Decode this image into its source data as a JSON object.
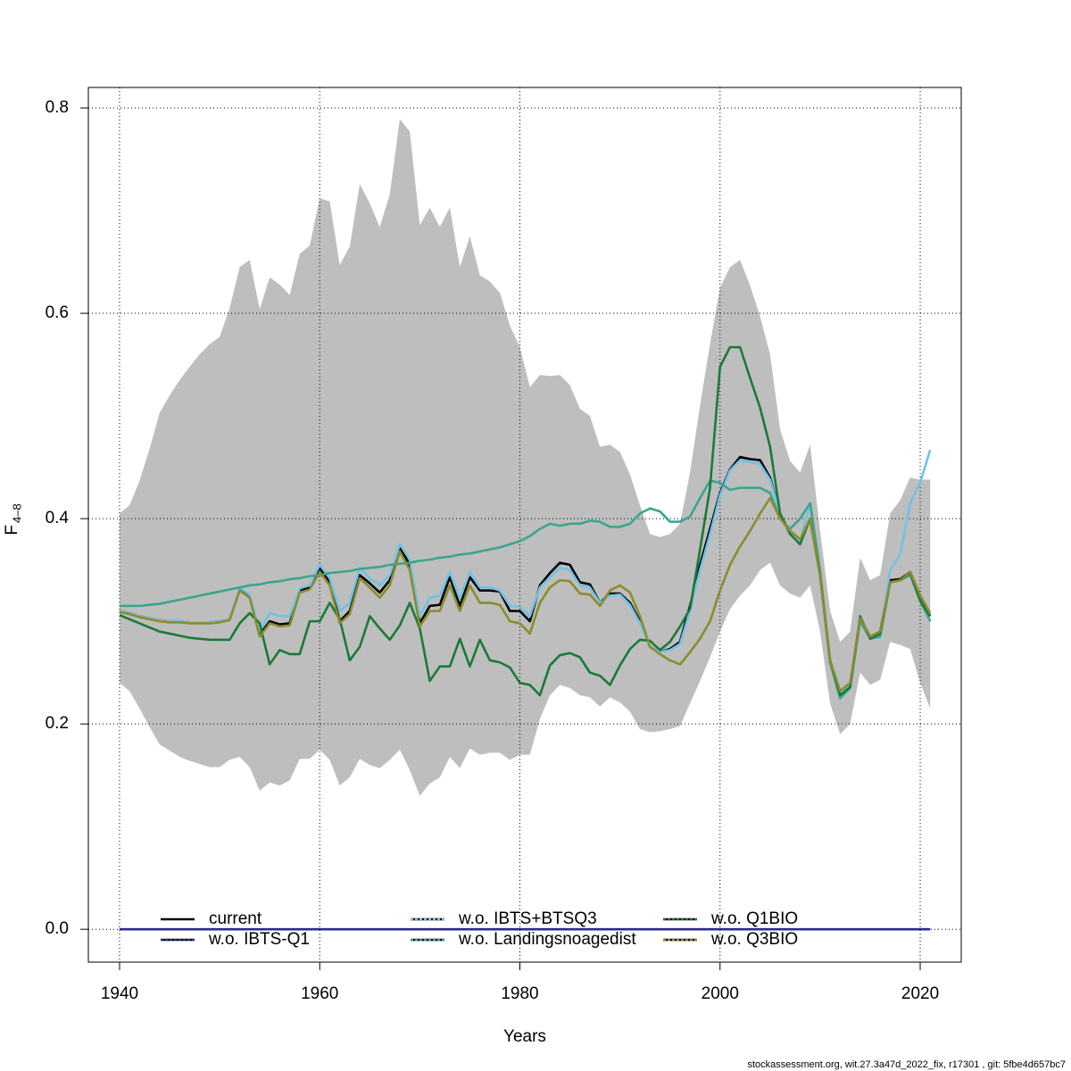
{
  "chart_data": {
    "type": "line",
    "xlabel": "Years",
    "ylabel": "F",
    "ylabel_sub": "4–8",
    "footer": "stockassessment.org, wit.27.3a47d_2022_fix, r17301 , git: 5fbe4d657bc7",
    "xlim": [
      1936.88,
      2024.1
    ],
    "ylim": [
      -0.032,
      0.82
    ],
    "xticks": [
      1940,
      1960,
      1980,
      2000,
      2020
    ],
    "yticks": [
      {
        "value": 0,
        "label": "0.0"
      },
      0.2,
      0.4,
      0.6,
      0.8
    ],
    "grid": true,
    "legend": "bottom",
    "x": [
      1940,
      1941,
      1942,
      1943,
      1944,
      1945,
      1946,
      1947,
      1948,
      1949,
      1950,
      1951,
      1952,
      1953,
      1954,
      1955,
      1956,
      1957,
      1958,
      1959,
      1960,
      1961,
      1962,
      1963,
      1964,
      1965,
      1966,
      1967,
      1968,
      1969,
      1970,
      1971,
      1972,
      1973,
      1974,
      1975,
      1976,
      1977,
      1978,
      1979,
      1980,
      1981,
      1982,
      1983,
      1984,
      1985,
      1986,
      1987,
      1988,
      1989,
      1990,
      1991,
      1992,
      1993,
      1994,
      1995,
      1996,
      1997,
      1998,
      1999,
      2000,
      2001,
      2002,
      2003,
      2004,
      2005,
      2006,
      2007,
      2008,
      2009,
      2010,
      2011,
      2012,
      2013,
      2014,
      2015,
      2016,
      2017,
      2018,
      2019,
      2020,
      2021
    ],
    "band": {
      "color": "#bebebe",
      "upper": [
        0.405,
        0.413,
        0.437,
        0.468,
        0.503,
        0.52,
        0.535,
        0.548,
        0.56,
        0.57,
        0.577,
        0.605,
        0.645,
        0.652,
        0.604,
        0.635,
        0.628,
        0.618,
        0.658,
        0.666,
        0.712,
        0.709,
        0.647,
        0.665,
        0.726,
        0.707,
        0.684,
        0.716,
        0.789,
        0.777,
        0.686,
        0.703,
        0.684,
        0.703,
        0.645,
        0.675,
        0.637,
        0.631,
        0.62,
        0.588,
        0.567,
        0.528,
        0.54,
        0.539,
        0.54,
        0.53,
        0.507,
        0.5,
        0.47,
        0.472,
        0.465,
        0.443,
        0.413,
        0.385,
        0.382,
        0.385,
        0.395,
        0.445,
        0.51,
        0.57,
        0.625,
        0.645,
        0.652,
        0.627,
        0.597,
        0.56,
        0.487,
        0.456,
        0.445,
        0.472,
        0.388,
        0.31,
        0.28,
        0.29,
        0.362,
        0.34,
        0.345,
        0.405,
        0.418,
        0.44,
        0.438,
        0.438
      ],
      "lower": [
        0.24,
        0.232,
        0.215,
        0.197,
        0.18,
        0.174,
        0.168,
        0.164,
        0.161,
        0.158,
        0.158,
        0.165,
        0.168,
        0.158,
        0.135,
        0.143,
        0.14,
        0.145,
        0.166,
        0.166,
        0.175,
        0.165,
        0.14,
        0.148,
        0.166,
        0.16,
        0.157,
        0.165,
        0.175,
        0.155,
        0.13,
        0.142,
        0.148,
        0.168,
        0.157,
        0.176,
        0.17,
        0.172,
        0.172,
        0.165,
        0.17,
        0.17,
        0.205,
        0.228,
        0.238,
        0.235,
        0.228,
        0.226,
        0.217,
        0.226,
        0.221,
        0.212,
        0.195,
        0.192,
        0.193,
        0.195,
        0.198,
        0.22,
        0.242,
        0.265,
        0.29,
        0.312,
        0.325,
        0.335,
        0.35,
        0.357,
        0.335,
        0.327,
        0.323,
        0.335,
        0.29,
        0.22,
        0.19,
        0.2,
        0.25,
        0.238,
        0.243,
        0.28,
        0.277,
        0.273,
        0.24,
        0.215
      ]
    },
    "series": [
      {
        "name": "current",
        "color": "#000000",
        "values": [
          0.31,
          0.308,
          0.305,
          0.303,
          0.301,
          0.3,
          0.3,
          0.299,
          0.299,
          0.299,
          0.3,
          0.302,
          0.332,
          0.325,
          0.287,
          0.3,
          0.297,
          0.298,
          0.33,
          0.333,
          0.352,
          0.338,
          0.3,
          0.31,
          0.345,
          0.337,
          0.328,
          0.34,
          0.372,
          0.355,
          0.298,
          0.315,
          0.316,
          0.343,
          0.315,
          0.343,
          0.33,
          0.33,
          0.329,
          0.31,
          0.31,
          0.3,
          0.335,
          0.347,
          0.357,
          0.355,
          0.338,
          0.336,
          0.318,
          0.327,
          0.327,
          0.318,
          0.3,
          0.275,
          0.27,
          0.273,
          0.28,
          0.315,
          0.355,
          0.39,
          0.425,
          0.448,
          0.46,
          0.458,
          0.457,
          0.44,
          0.405,
          0.385,
          0.377,
          0.4,
          0.345,
          0.26,
          0.23,
          0.238,
          0.303,
          0.285,
          0.29,
          0.34,
          0.341,
          0.348,
          0.325,
          0.305
        ]
      },
      {
        "name": "w.o. IBTS-Q1",
        "color": "#2e2a8c",
        "values": [
          0,
          0,
          0,
          0,
          0,
          0,
          0,
          0,
          0,
          0,
          0,
          0,
          0,
          0,
          0,
          0,
          0,
          0,
          0,
          0,
          0,
          0,
          0,
          0,
          0,
          0,
          0,
          0,
          0,
          0,
          0,
          0,
          0,
          0,
          0,
          0,
          0,
          0,
          0,
          0,
          0,
          0,
          0,
          0,
          0,
          0,
          0,
          0,
          0,
          0,
          0,
          0,
          0,
          0,
          0,
          0,
          0,
          0,
          0,
          0,
          0,
          0,
          0,
          0,
          0,
          0,
          0,
          0,
          0,
          0,
          0,
          0,
          0,
          0,
          0,
          0,
          0,
          0,
          0,
          0,
          0,
          0
        ]
      },
      {
        "name": "w.o. IBTS+BTSQ3",
        "color": "#6fc3e6",
        "values": [
          0.31,
          0.308,
          0.305,
          0.303,
          0.301,
          0.3,
          0.3,
          0.299,
          0.299,
          0.299,
          0.3,
          0.302,
          0.333,
          0.326,
          0.29,
          0.308,
          0.305,
          0.305,
          0.332,
          0.335,
          0.355,
          0.342,
          0.31,
          0.318,
          0.352,
          0.342,
          0.335,
          0.345,
          0.375,
          0.36,
          0.305,
          0.323,
          0.325,
          0.348,
          0.322,
          0.348,
          0.333,
          0.333,
          0.33,
          0.315,
          0.314,
          0.305,
          0.333,
          0.343,
          0.352,
          0.35,
          0.335,
          0.333,
          0.318,
          0.325,
          0.326,
          0.316,
          0.298,
          0.275,
          0.27,
          0.272,
          0.278,
          0.31,
          0.35,
          0.385,
          0.423,
          0.447,
          0.457,
          0.455,
          0.453,
          0.438,
          0.405,
          0.385,
          0.378,
          0.415,
          0.345,
          0.26,
          0.23,
          0.238,
          0.3,
          0.283,
          0.285,
          0.35,
          0.365,
          0.415,
          0.435,
          0.467
        ]
      },
      {
        "name": "w.o. Landingsnoagedist",
        "color": "#3aa58f",
        "values": [
          0.315,
          0.315,
          0.315,
          0.316,
          0.317,
          0.319,
          0.321,
          0.323,
          0.325,
          0.327,
          0.329,
          0.331,
          0.333,
          0.335,
          0.336,
          0.338,
          0.339,
          0.341,
          0.342,
          0.344,
          0.345,
          0.347,
          0.348,
          0.349,
          0.351,
          0.352,
          0.353,
          0.355,
          0.356,
          0.357,
          0.359,
          0.36,
          0.362,
          0.363,
          0.365,
          0.366,
          0.368,
          0.37,
          0.372,
          0.375,
          0.378,
          0.383,
          0.39,
          0.395,
          0.393,
          0.395,
          0.395,
          0.398,
          0.397,
          0.392,
          0.392,
          0.395,
          0.405,
          0.41,
          0.407,
          0.397,
          0.397,
          0.402,
          0.42,
          0.437,
          0.435,
          0.428,
          0.43,
          0.43,
          0.43,
          0.425,
          0.4,
          0.39,
          0.4,
          0.415,
          0.35,
          0.26,
          0.225,
          0.235,
          0.3,
          0.283,
          0.285,
          0.338,
          0.34,
          0.345,
          0.32,
          0.3
        ]
      },
      {
        "name": "w.o. Q1BIO",
        "color": "#1a7a38",
        "values": [
          0.306,
          0.302,
          0.298,
          0.294,
          0.29,
          0.288,
          0.286,
          0.284,
          0.283,
          0.282,
          0.282,
          0.282,
          0.298,
          0.308,
          0.298,
          0.258,
          0.272,
          0.268,
          0.268,
          0.3,
          0.3,
          0.318,
          0.302,
          0.262,
          0.275,
          0.305,
          0.293,
          0.282,
          0.296,
          0.318,
          0.293,
          0.242,
          0.256,
          0.256,
          0.283,
          0.256,
          0.282,
          0.262,
          0.26,
          0.255,
          0.24,
          0.238,
          0.228,
          0.257,
          0.267,
          0.269,
          0.265,
          0.25,
          0.247,
          0.238,
          0.257,
          0.273,
          0.282,
          0.281,
          0.272,
          0.28,
          0.295,
          0.312,
          0.37,
          0.43,
          0.548,
          0.567,
          0.567,
          0.537,
          0.508,
          0.47,
          0.405,
          0.385,
          0.375,
          0.4,
          0.345,
          0.262,
          0.228,
          0.236,
          0.305,
          0.283,
          0.288,
          0.338,
          0.34,
          0.347,
          0.32,
          0.305
        ]
      },
      {
        "name": "w.o. Q3BIO",
        "color": "#8c8c2c",
        "values": [
          0.309,
          0.307,
          0.304,
          0.302,
          0.3,
          0.299,
          0.299,
          0.298,
          0.298,
          0.298,
          0.299,
          0.301,
          0.33,
          0.323,
          0.285,
          0.298,
          0.295,
          0.296,
          0.328,
          0.331,
          0.348,
          0.335,
          0.298,
          0.307,
          0.342,
          0.333,
          0.323,
          0.335,
          0.368,
          0.35,
          0.295,
          0.31,
          0.31,
          0.335,
          0.31,
          0.335,
          0.318,
          0.318,
          0.316,
          0.3,
          0.298,
          0.288,
          0.318,
          0.333,
          0.34,
          0.339,
          0.327,
          0.326,
          0.315,
          0.33,
          0.335,
          0.328,
          0.305,
          0.275,
          0.268,
          0.262,
          0.258,
          0.27,
          0.283,
          0.3,
          0.33,
          0.355,
          0.373,
          0.388,
          0.405,
          0.42,
          0.4,
          0.388,
          0.38,
          0.4,
          0.345,
          0.262,
          0.232,
          0.24,
          0.303,
          0.285,
          0.29,
          0.338,
          0.34,
          0.348,
          0.325,
          0.308
        ]
      }
    ]
  }
}
